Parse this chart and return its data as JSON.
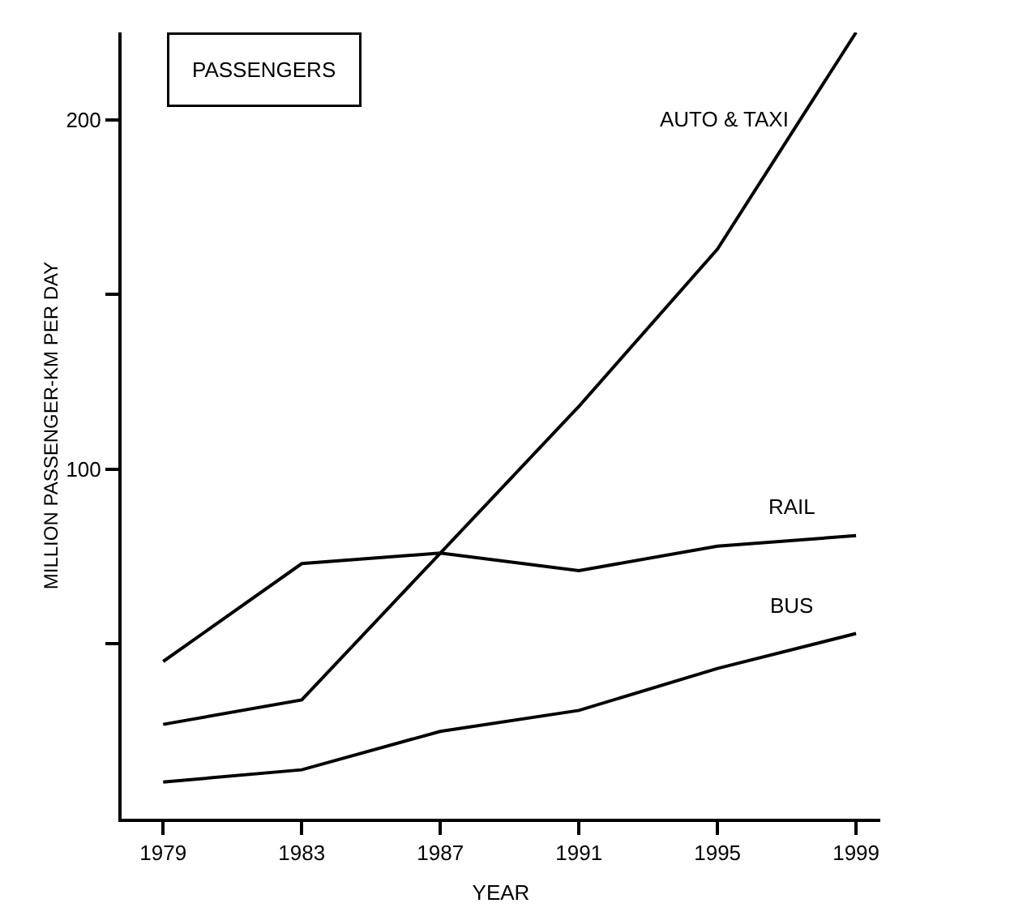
{
  "chart_data": {
    "type": "line",
    "title": "PASSENGERS",
    "xlabel": "YEAR",
    "ylabel": "MILLION PASSENGER-KM PER DAY",
    "x": [
      1979,
      1983,
      1987,
      1991,
      1995,
      1999
    ],
    "series": [
      {
        "name": "AUTO & TAXI",
        "color": "#000000",
        "values": [
          27,
          34,
          76,
          118,
          163,
          225
        ]
      },
      {
        "name": "RAIL",
        "color": "#000000",
        "values": [
          45,
          73,
          76,
          71,
          78,
          81
        ]
      },
      {
        "name": "BUS",
        "color": "#000000",
        "values": [
          10.5,
          14,
          25,
          31,
          43,
          53
        ]
      }
    ],
    "xlim": [
      1977.8,
      1999.7
    ],
    "xticks": [
      1979,
      1983,
      1987,
      1991,
      1995,
      1999
    ],
    "ylim": [
      0,
      225
    ],
    "yticks": [
      {
        "value": 50,
        "label": null
      },
      100,
      {
        "value": 150,
        "label": null
      },
      200
    ],
    "grid": false,
    "legend": false,
    "marker": "none",
    "line_style": "solid"
  }
}
